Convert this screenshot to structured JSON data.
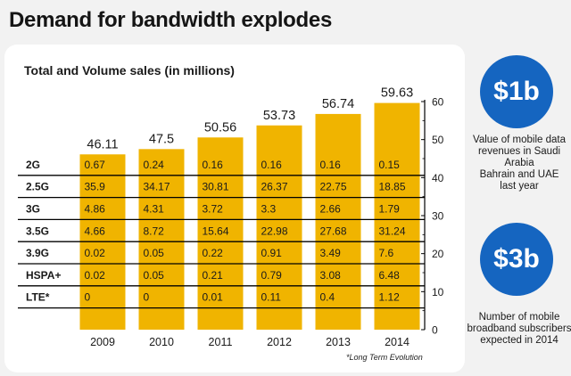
{
  "headline": "Demand for bandwidth explodes",
  "chart_data": {
    "type": "table",
    "title": "Total and Volume sales (in millions)",
    "years": [
      "2009",
      "2010",
      "2011",
      "2012",
      "2013",
      "2014"
    ],
    "totals": [
      "46.11",
      "47.5",
      "50.56",
      "53.73",
      "56.74",
      "59.63"
    ],
    "total_values": [
      46.11,
      47.5,
      50.56,
      53.73,
      56.74,
      59.63
    ],
    "ylim": [
      0,
      60
    ],
    "yticks": [
      "0",
      "10",
      "20",
      "30",
      "40",
      "50",
      "60"
    ],
    "ytick_values": [
      0,
      10,
      20,
      30,
      40,
      50,
      60
    ],
    "rows": [
      {
        "label": "2G",
        "values": [
          "0.67",
          "0.24",
          "0.16",
          "0.16",
          "0.16",
          "0.15"
        ]
      },
      {
        "label": "2.5G",
        "values": [
          "35.9",
          "34.17",
          "30.81",
          "26.37",
          "22.75",
          "18.85"
        ]
      },
      {
        "label": "3G",
        "values": [
          "4.86",
          "4.31",
          "3.72",
          "3.3",
          "2.66",
          "1.79"
        ]
      },
      {
        "label": "3.5G",
        "values": [
          "4.66",
          "8.72",
          "15.64",
          "22.98",
          "27.68",
          "31.24"
        ]
      },
      {
        "label": "3.9G",
        "values": [
          "0.02",
          "0.05",
          "0.22",
          "0.91",
          "3.49",
          "7.6"
        ]
      },
      {
        "label": "HSPA+",
        "values": [
          "0.02",
          "0.05",
          "0.21",
          "0.79",
          "3.08",
          "6.48"
        ]
      },
      {
        "label": "LTE*",
        "values": [
          "0",
          "0",
          "0.01",
          "0.11",
          "0.4",
          "1.12"
        ]
      }
    ],
    "footnote": "*Long Term Evolution",
    "bar_color": "#f0b400"
  },
  "side": {
    "badge1": "$1b",
    "text1": [
      "Value of mobile data",
      "revenues in Saudi Arabia",
      "Bahrain and UAE",
      "last year"
    ],
    "badge2": "$3b",
    "text2": [
      "Number of mobile",
      "broadband subscribers",
      "expected  in 2014"
    ],
    "badge_color": "#1565c0"
  }
}
